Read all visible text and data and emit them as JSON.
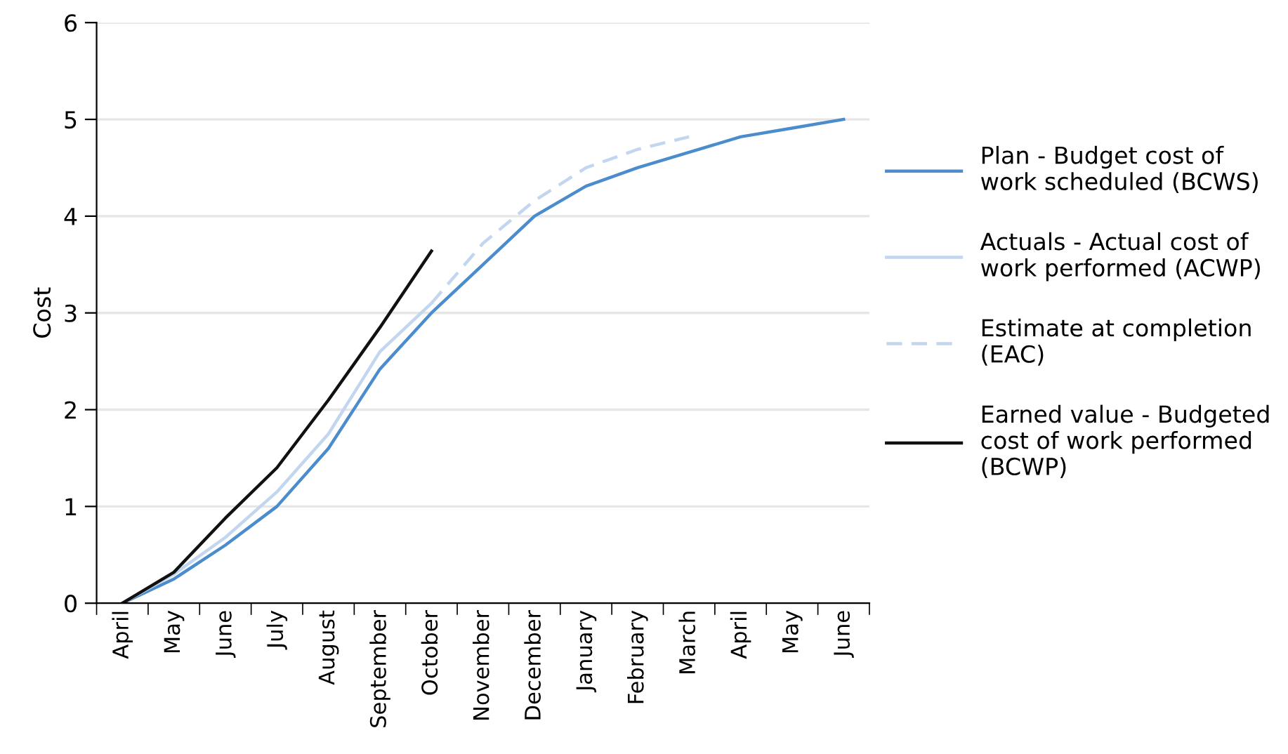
{
  "chart_data": {
    "type": "line",
    "ylabel": "Cost",
    "categories": [
      "April",
      "May",
      "June",
      "July",
      "August",
      "September",
      "October",
      "November",
      "December",
      "January",
      "February",
      "March",
      "April",
      "May",
      "June"
    ],
    "ylim": [
      0,
      6
    ],
    "yticks": [
      0,
      1,
      2,
      3,
      4,
      5,
      6
    ],
    "grid": "y",
    "legend": "right",
    "marker": "none",
    "series": [
      {
        "name": "Plan - Budget cost of work scheduled (BCWS)",
        "color": "#4a8ccc",
        "line_style": "solid",
        "values": [
          0,
          0.25,
          0.6,
          1.0,
          1.6,
          2.42,
          3.0,
          3.5,
          4.0,
          4.31,
          4.5,
          4.66,
          4.82,
          4.91,
          5.0
        ]
      },
      {
        "name": "Actuals - Actual cost of work performed (ACWP)",
        "color": "#c2d6ef",
        "line_style": "solid",
        "values": [
          0,
          0.3,
          0.68,
          1.15,
          1.75,
          2.6,
          3.1,
          null,
          null,
          null,
          null,
          null,
          null,
          null,
          null
        ]
      },
      {
        "name": "Estimate at completion (EAC)",
        "color": "#c2d6ef",
        "line_style": "dashed",
        "values": [
          null,
          null,
          null,
          null,
          null,
          null,
          3.1,
          3.72,
          4.16,
          4.5,
          4.69,
          4.82,
          null,
          null,
          null
        ]
      },
      {
        "name": "Earned value - Budgeted cost of work performed (BCWP)",
        "color": "#111111",
        "line_style": "solid",
        "values": [
          0,
          0.32,
          0.88,
          1.4,
          2.1,
          2.85,
          3.64,
          null,
          null,
          null,
          null,
          null,
          null,
          null,
          null
        ]
      }
    ]
  }
}
